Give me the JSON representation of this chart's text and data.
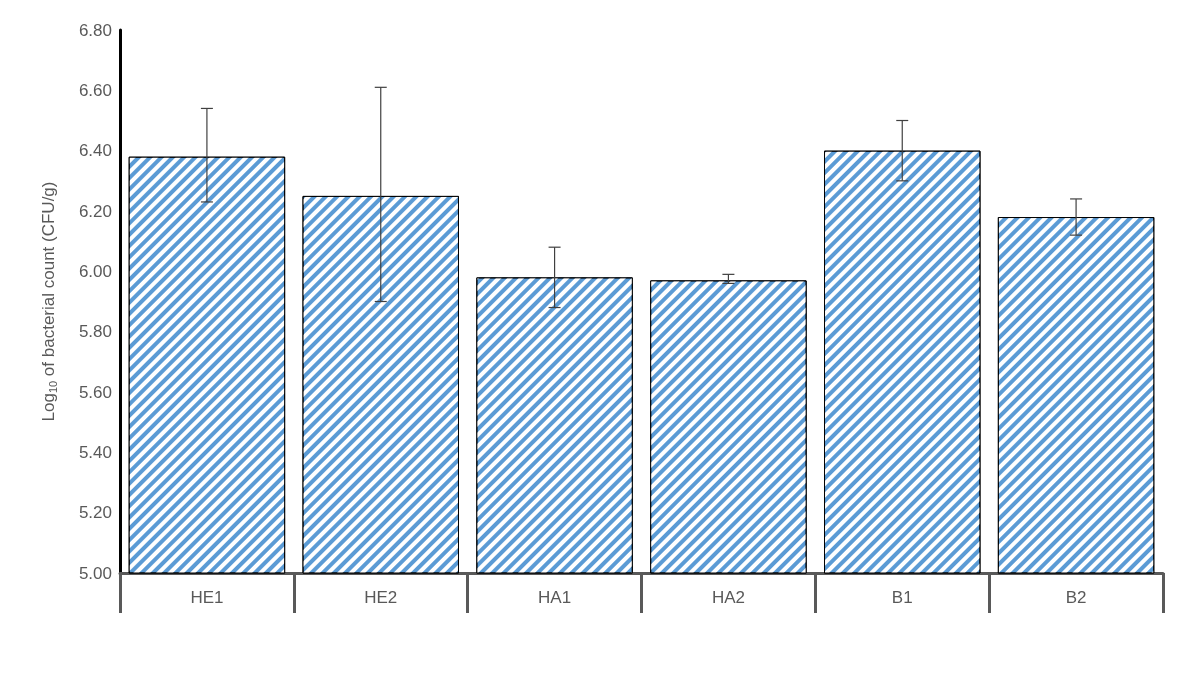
{
  "chart_data": {
    "type": "bar",
    "ylabel": "Log$_{10}$ of bacterial count (CFU/g)",
    "categories": [
      "HE1",
      "HE2",
      "HA1",
      "HA2",
      "B1",
      "B2"
    ],
    "values": [
      6.38,
      6.25,
      5.98,
      5.97,
      6.4,
      6.18
    ],
    "errors": [
      [
        6.23,
        6.54
      ],
      [
        5.9,
        6.61
      ],
      [
        5.88,
        6.08
      ],
      [
        5.96,
        5.99
      ],
      [
        6.3,
        6.5
      ],
      [
        6.12,
        6.24
      ]
    ],
    "color": "#5b9bd5",
    "ylim": [
      5,
      6.8
    ],
    "yticks": [
      {
        "value": 5,
        "label": "5.00"
      },
      {
        "value": 5.2,
        "label": "5.20"
      },
      {
        "value": 5.4,
        "label": "5.40"
      },
      {
        "value": 5.6,
        "label": "5.60"
      },
      {
        "value": 5.8,
        "label": "5.80"
      },
      {
        "value": 6,
        "label": "6.00"
      },
      {
        "value": 6.2,
        "label": "6.20"
      },
      {
        "value": 6.4,
        "label": "6.40"
      },
      {
        "value": 6.6,
        "label": "6.60"
      },
      {
        "value": 6.8,
        "label": "6.80"
      }
    ],
    "grid": false
  }
}
